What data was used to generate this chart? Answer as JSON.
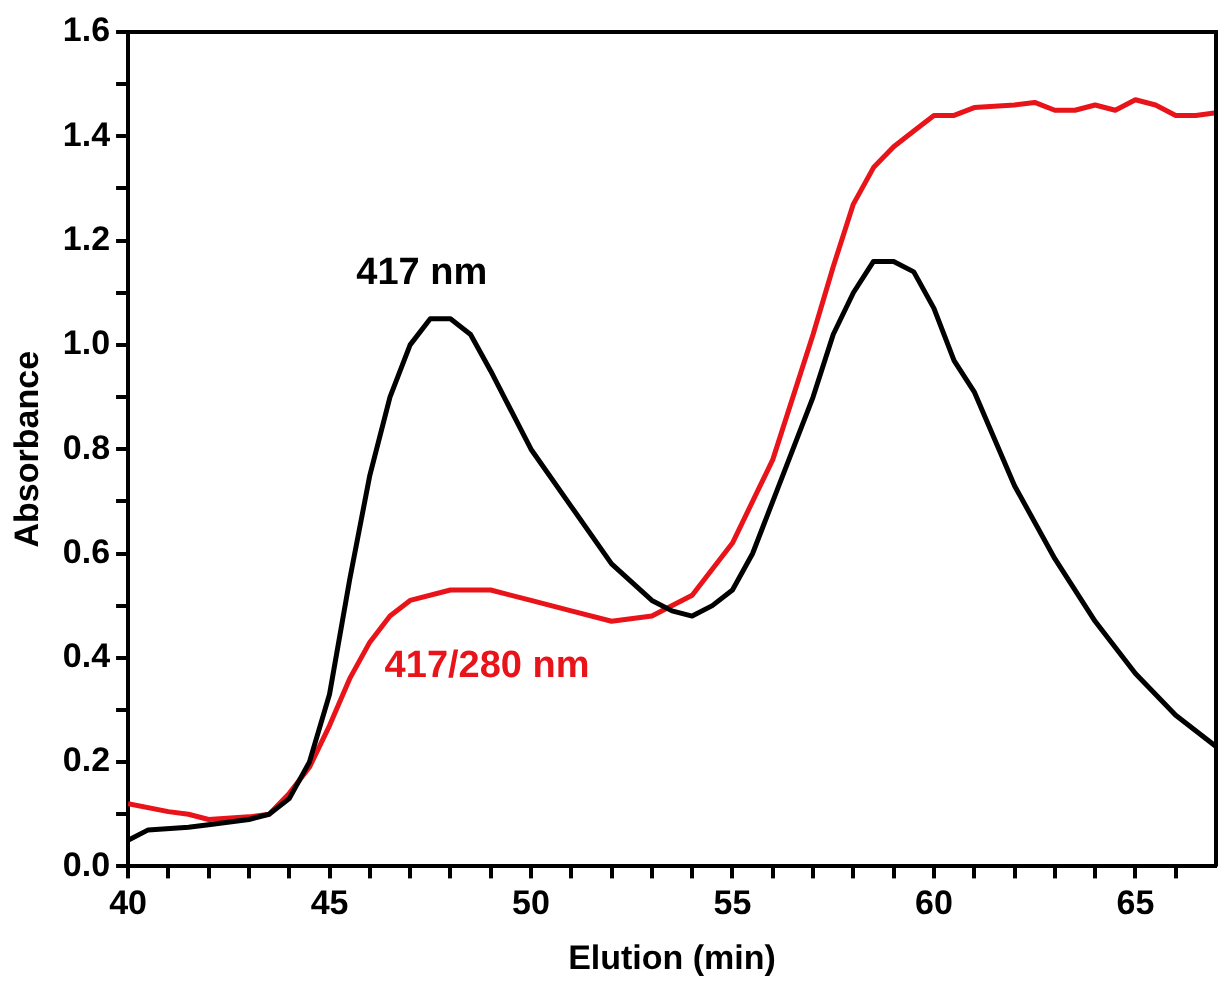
{
  "chart_data": {
    "type": "line",
    "xlabel": "Elution (min)",
    "ylabel": "Absorbance",
    "xlim": [
      40,
      67
    ],
    "ylim": [
      0,
      1.6
    ],
    "xticks": [
      40,
      {
        "value": 41,
        "label": null
      },
      {
        "value": 42,
        "label": null
      },
      {
        "value": 43,
        "label": null
      },
      {
        "value": 44,
        "label": null
      },
      45,
      {
        "value": 46,
        "label": null
      },
      {
        "value": 47,
        "label": null
      },
      {
        "value": 48,
        "label": null
      },
      {
        "value": 49,
        "label": null
      },
      50,
      {
        "value": 51,
        "label": null
      },
      {
        "value": 52,
        "label": null
      },
      {
        "value": 53,
        "label": null
      },
      {
        "value": 54,
        "label": null
      },
      55,
      {
        "value": 56,
        "label": null
      },
      {
        "value": 57,
        "label": null
      },
      {
        "value": 58,
        "label": null
      },
      {
        "value": 59,
        "label": null
      },
      60,
      {
        "value": 61,
        "label": null
      },
      {
        "value": 62,
        "label": null
      },
      {
        "value": 63,
        "label": null
      },
      {
        "value": 64,
        "label": null
      },
      65,
      {
        "value": 66,
        "label": null
      }
    ],
    "yticks": [
      {
        "value": 0,
        "label": "0.0"
      },
      {
        "value": 0.1,
        "label": null
      },
      {
        "value": 0.2,
        "label": "0.2"
      },
      {
        "value": 0.3,
        "label": null
      },
      {
        "value": 0.4,
        "label": "0.4"
      },
      {
        "value": 0.5,
        "label": null
      },
      {
        "value": 0.6,
        "label": "0.6"
      },
      {
        "value": 0.7,
        "label": null
      },
      {
        "value": 0.8,
        "label": "0.8"
      },
      {
        "value": 0.9,
        "label": null
      },
      {
        "value": 1,
        "label": "1.0"
      },
      {
        "value": 1.1,
        "label": null
      },
      {
        "value": 1.2,
        "label": "1.2"
      },
      {
        "value": 1.3,
        "label": null
      },
      {
        "value": 1.4,
        "label": "1.4"
      },
      {
        "value": 1.5,
        "label": null
      },
      {
        "value": 1.6,
        "label": "1.6"
      }
    ],
    "grid": false,
    "legend": false,
    "marker": "none",
    "line_style": "solid",
    "series": [
      {
        "name": "417 nm",
        "color": "#000000",
        "x": [
          40,
          40.5,
          41.5,
          42,
          43,
          43.5,
          44,
          44.5,
          45,
          45.5,
          46,
          46.5,
          47,
          47.5,
          48,
          48.5,
          49,
          50,
          51,
          52,
          53,
          53.5,
          54,
          54.5,
          55,
          55.5,
          56,
          57,
          57.5,
          58,
          58.5,
          59,
          59.5,
          60,
          60.5,
          61,
          62,
          63,
          64,
          65,
          66,
          67
        ],
        "values": [
          0.05,
          0.07,
          0.075,
          0.08,
          0.09,
          0.1,
          0.13,
          0.2,
          0.33,
          0.55,
          0.75,
          0.9,
          1,
          1.05,
          1.05,
          1.02,
          0.95,
          0.8,
          0.69,
          0.58,
          0.51,
          0.49,
          0.48,
          0.5,
          0.53,
          0.6,
          0.7,
          0.9,
          1.02,
          1.1,
          1.16,
          1.16,
          1.14,
          1.07,
          0.97,
          0.91,
          0.73,
          0.59,
          0.47,
          0.37,
          0.29,
          0.23
        ]
      },
      {
        "name": "417/280 nm",
        "color": "#e8141a",
        "x": [
          40,
          41,
          41.5,
          42,
          43,
          43.5,
          44,
          44.5,
          45,
          45.5,
          46,
          46.5,
          47,
          48,
          49,
          50,
          51,
          52,
          53,
          54,
          55,
          56,
          57,
          57.5,
          58,
          58.5,
          59,
          59.5,
          60,
          60.5,
          61,
          62,
          62.5,
          63,
          63.5,
          64,
          64.5,
          65,
          65.5,
          66,
          66.5,
          67
        ],
        "values": [
          0.12,
          0.105,
          0.1,
          0.09,
          0.095,
          0.1,
          0.14,
          0.19,
          0.27,
          0.36,
          0.43,
          0.48,
          0.51,
          0.53,
          0.53,
          0.51,
          0.49,
          0.47,
          0.48,
          0.52,
          0.62,
          0.78,
          1.02,
          1.15,
          1.27,
          1.34,
          1.38,
          1.41,
          1.44,
          1.44,
          1.455,
          1.46,
          1.465,
          1.45,
          1.45,
          1.46,
          1.45,
          1.47,
          1.46,
          1.44,
          1.44,
          1.445
        ]
      }
    ]
  }
}
